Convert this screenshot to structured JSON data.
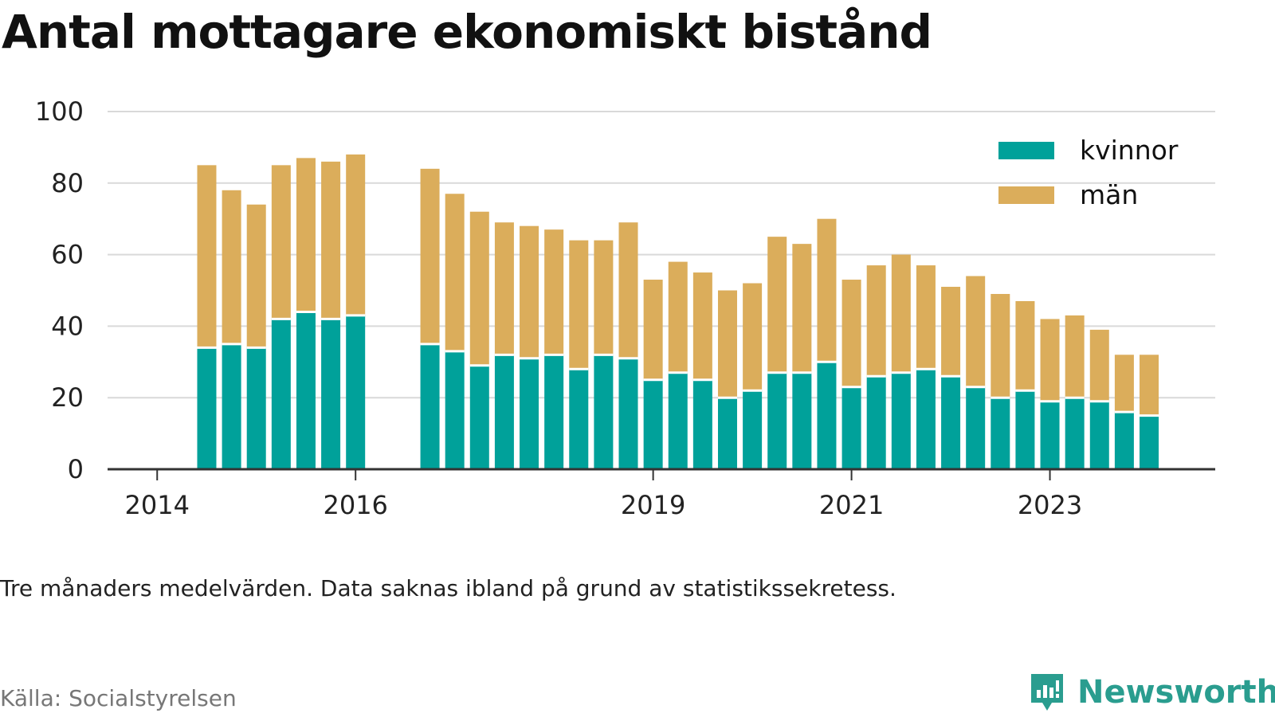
{
  "title": "Antal mottagare ekonomiskt bistånd",
  "subtitle": "Tre månaders medelvärden. Data saknas ibland på grund av statistikssekretess.",
  "source": "Källa: Socialstyrelsen",
  "brand": {
    "name": "Newsworthy",
    "icon": "newsworthy-logo-icon",
    "color": "#2a9d8f"
  },
  "colors": {
    "kvinnor": "#00a19a",
    "man": "#dbad5b",
    "grid": "#d9d9d9",
    "axis": "#333333"
  },
  "chart_data": {
    "type": "bar",
    "stacked": true,
    "ylim": [
      0,
      100
    ],
    "yticks": [
      0,
      20,
      40,
      60,
      80,
      100
    ],
    "xticks": [
      {
        "label": "2014",
        "date": "2014-01-01"
      },
      {
        "label": "2016",
        "date": "2016-01-01"
      },
      {
        "label": "2019",
        "date": "2019-01-01"
      },
      {
        "label": "2021",
        "date": "2021-01-01"
      },
      {
        "label": "2023",
        "date": "2023-01-01"
      }
    ],
    "xlim": [
      "2013-07-01",
      "2024-09-01"
    ],
    "legend_position": "top-right",
    "grid": true,
    "categories": [
      "2014-07",
      "2014-10",
      "2015-01",
      "2015-04",
      "2015-07",
      "2015-10",
      "2016-01",
      "2016-10",
      "2017-01",
      "2017-04",
      "2017-07",
      "2017-10",
      "2018-01",
      "2018-04",
      "2018-07",
      "2018-10",
      "2019-01",
      "2019-04",
      "2019-07",
      "2019-10",
      "2020-01",
      "2020-04",
      "2020-07",
      "2020-10",
      "2021-01",
      "2021-04",
      "2021-07",
      "2021-10",
      "2022-01",
      "2022-04",
      "2022-07",
      "2022-10",
      "2023-01",
      "2023-04",
      "2023-07",
      "2023-10",
      "2024-01"
    ],
    "series": [
      {
        "name": "kvinnor",
        "values": [
          34,
          35,
          34,
          42,
          44,
          42,
          43,
          35,
          33,
          29,
          32,
          31,
          32,
          28,
          32,
          31,
          25,
          27,
          25,
          20,
          22,
          27,
          27,
          30,
          23,
          26,
          27,
          28,
          26,
          23,
          20,
          22,
          19,
          20,
          19,
          16,
          15
        ]
      },
      {
        "name": "män",
        "values": [
          51,
          43,
          40,
          43,
          43,
          44,
          45,
          49,
          44,
          43,
          37,
          37,
          35,
          36,
          32,
          38,
          28,
          31,
          30,
          30,
          30,
          38,
          36,
          40,
          30,
          31,
          33,
          29,
          25,
          31,
          29,
          25,
          23,
          23,
          20,
          16,
          17
        ]
      }
    ]
  }
}
